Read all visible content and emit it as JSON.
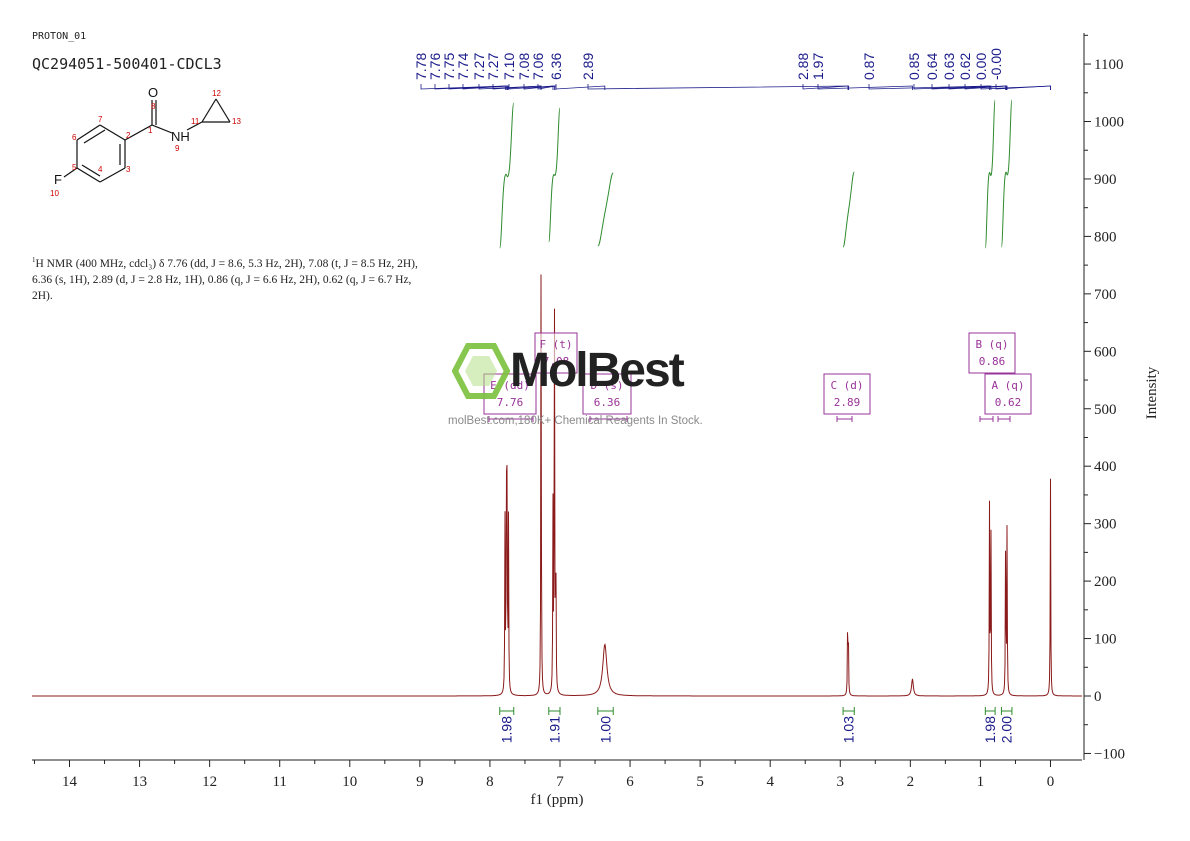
{
  "header": {
    "sample_name": "PROTON_01",
    "sample_id": "QC294051-500401-CDCL3"
  },
  "description": {
    "nucleus_sup": "1",
    "text": "H NMR (400 MHz, cdcl₃) δ 7.76 (dd, J = 8.6, 5.3 Hz, 2H), 7.08 (t, J = 8.5 Hz, 2H), 6.36 (s, 1H), 2.89 (d, J = 2.8 Hz, 1H), 0.86 (q, J = 6.6 Hz, 2H), 0.62 (q, J = 6.7 Hz, 2H)."
  },
  "watermark": {
    "name": "MolBest",
    "tagline": "molBest.com,180K+ Chemical Reagents In Stock."
  },
  "structure": {
    "atoms": [
      {
        "symbol": "O",
        "num": "8"
      },
      {
        "symbol": "NH",
        "num": "9"
      },
      {
        "symbol": "F",
        "num": "10"
      }
    ],
    "ring_numbers": [
      "1",
      "2",
      "3",
      "4",
      "5",
      "6",
      "7",
      "11",
      "12",
      "13"
    ]
  },
  "chart_data": {
    "type": "line",
    "title": "",
    "xlabel": "f1 (ppm)",
    "ylabel": "Intensity",
    "xlim": [
      14.6,
      -0.5
    ],
    "ylim": [
      -110,
      1160
    ],
    "x_ticks": [
      14,
      13,
      12,
      11,
      10,
      9,
      8,
      7,
      6,
      5,
      4,
      3,
      2,
      1,
      0
    ],
    "y_ticks": [
      -100,
      0,
      100,
      200,
      300,
      400,
      500,
      600,
      700,
      800,
      900,
      1000,
      1100
    ],
    "grid": false,
    "line_color": "#8b1a1a",
    "peaks": [
      {
        "ppm": 7.785,
        "height": 300
      },
      {
        "ppm": 7.765,
        "height": 360
      },
      {
        "ppm": 7.755,
        "height": 355
      },
      {
        "ppm": 7.735,
        "height": 300
      },
      {
        "ppm": 7.27,
        "height": 780
      },
      {
        "ppm": 7.1,
        "height": 320
      },
      {
        "ppm": 7.08,
        "height": 760
      },
      {
        "ppm": 7.06,
        "height": 300
      },
      {
        "ppm": 6.36,
        "height": 90
      },
      {
        "ppm": 2.895,
        "height": 120
      },
      {
        "ppm": 2.885,
        "height": 110
      },
      {
        "ppm": 1.97,
        "height": 30
      },
      {
        "ppm": 0.87,
        "height": 330
      },
      {
        "ppm": 0.85,
        "height": 300
      },
      {
        "ppm": 0.64,
        "height": 300
      },
      {
        "ppm": 0.62,
        "height": 290
      },
      {
        "ppm": 0.0,
        "height": 380
      }
    ],
    "peak_labels": [
      "7.78",
      "7.76",
      "7.75",
      "7.74",
      "7.27",
      "7.27",
      "7.10",
      "7.08",
      "7.06",
      "6.36",
      "2.89",
      "2.88",
      "1.97",
      "0.87",
      "0.85",
      "0.64",
      "0.63",
      "0.62",
      "0.00",
      "-0.00"
    ],
    "multiplets": [
      {
        "letter": "E",
        "type": "dd",
        "shift": "7.76",
        "label_head": "E (dd)",
        "label_shift": "7.76"
      },
      {
        "letter": "F",
        "type": "t",
        "shift": "7.08",
        "label_head": "F (t)",
        "label_shift": "7.08"
      },
      {
        "letter": "D",
        "type": "s",
        "shift": "6.36",
        "label_head": "D (s)",
        "label_shift": "6.36"
      },
      {
        "letter": "C",
        "type": "d",
        "shift": "2.89",
        "label_head": "C (d)",
        "label_shift": "2.89"
      },
      {
        "letter": "B",
        "type": "q",
        "shift": "0.86",
        "label_head": "B (q)",
        "label_shift": "0.86"
      },
      {
        "letter": "A",
        "type": "q",
        "shift": "0.62",
        "label_head": "A (q)",
        "label_shift": "0.62"
      }
    ],
    "integrals": [
      {
        "from": 7.86,
        "to": 7.66,
        "value": "1.98"
      },
      {
        "from": 7.16,
        "to": 7.0,
        "value": "1.91"
      },
      {
        "from": 6.46,
        "to": 6.24,
        "value": "1.00"
      },
      {
        "from": 2.96,
        "to": 2.8,
        "value": "1.03"
      },
      {
        "from": 0.93,
        "to": 0.79,
        "value": "1.98"
      },
      {
        "from": 0.7,
        "to": 0.55,
        "value": "2.00"
      }
    ],
    "colors": {
      "peak_label": "#1a1a8a",
      "multiplet_box": "#993399",
      "integral_curve": "#2e8b2e",
      "integral_value": "#1a1a8a"
    }
  }
}
